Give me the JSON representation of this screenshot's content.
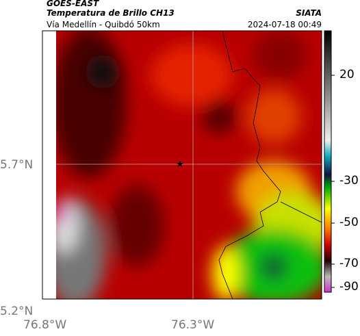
{
  "header": {
    "title": "GOES-EAST",
    "subtitle": "Temperatura de Brillo CH13",
    "agency": "SIATA",
    "region": "Vía Medellín - Quibdó 50km",
    "timestamp": "2024-07-18 00:49"
  },
  "map": {
    "lat_labels": [
      "5.7°N",
      "5.2°N"
    ],
    "lon_labels": [
      "76.8°W",
      "76.3°W"
    ]
  },
  "colorbar": {
    "tick_labels": [
      "20",
      "-30",
      "-50",
      "-70",
      "-90"
    ]
  }
}
